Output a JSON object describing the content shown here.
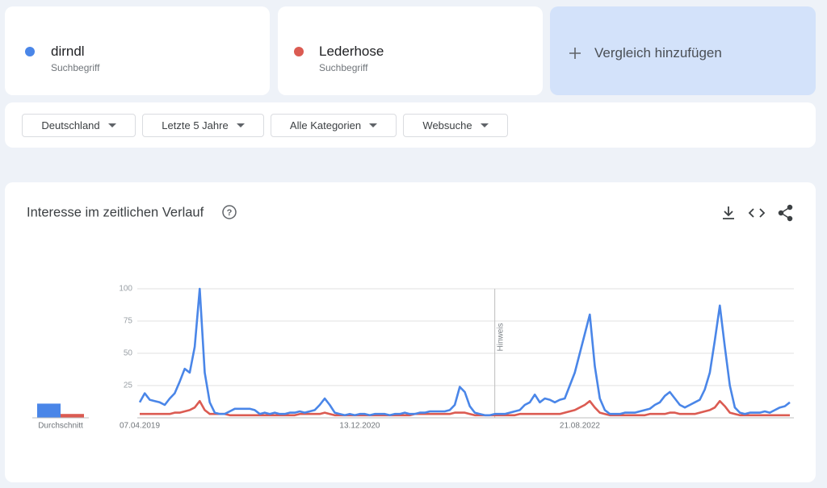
{
  "terms": [
    {
      "subtitle": "Suchbegriff"
    },
    {
      "subtitle": "Suchbegriff"
    }
  ],
  "add_compare": "Vergleich hinzufügen",
  "filters": [
    "Deutschland",
    "Letzte 5 Jahre",
    "Alle Kategorien",
    "Websuche"
  ],
  "chart_data": {
    "type": "line",
    "title": "Interesse im zeitlichen Verlauf",
    "categories": [
      "07.04.2019",
      null,
      null,
      null,
      null,
      null,
      null,
      null,
      null,
      null,
      null,
      null,
      null,
      null,
      null,
      null,
      null,
      null,
      null,
      null,
      null,
      null,
      null,
      null,
      null,
      null,
      null,
      null,
      null,
      null,
      null,
      null,
      null,
      null,
      null,
      null,
      null,
      null,
      null,
      null,
      null,
      null,
      null,
      null,
      "13.12.2020",
      null,
      null,
      null,
      null,
      null,
      null,
      null,
      null,
      null,
      null,
      null,
      null,
      null,
      null,
      null,
      null,
      null,
      null,
      null,
      null,
      null,
      null,
      null,
      null,
      null,
      null,
      null,
      null,
      null,
      null,
      null,
      null,
      null,
      null,
      null,
      null,
      null,
      null,
      null,
      null,
      null,
      null,
      null,
      "21.08.2022",
      null,
      null,
      null,
      null,
      null,
      null,
      null,
      null,
      null,
      null,
      null,
      null,
      null,
      null,
      null,
      null,
      null,
      null,
      null,
      null,
      null,
      null,
      null,
      null,
      null,
      null,
      null,
      null,
      null,
      null,
      null,
      null,
      null,
      null,
      null,
      null,
      null,
      null,
      null,
      null,
      null,
      null
    ],
    "series": [
      {
        "name": "dirndl",
        "color": "#4a86e8",
        "average": 11,
        "values": [
          12,
          19,
          14,
          13,
          12,
          10,
          15,
          19,
          28,
          38,
          35,
          55,
          100,
          35,
          12,
          4,
          3,
          3,
          5,
          7,
          7,
          7,
          7,
          6,
          3,
          4,
          3,
          4,
          3,
          3,
          4,
          4,
          5,
          4,
          5,
          6,
          10,
          15,
          10,
          4,
          3,
          2,
          3,
          2,
          3,
          3,
          2,
          3,
          3,
          3,
          2,
          3,
          3,
          4,
          3,
          3,
          4,
          4,
          5,
          5,
          5,
          5,
          6,
          10,
          24,
          20,
          9,
          4,
          3,
          2,
          2,
          3,
          3,
          3,
          4,
          5,
          6,
          10,
          12,
          18,
          12,
          15,
          14,
          12,
          14,
          15,
          25,
          35,
          50,
          65,
          80,
          40,
          15,
          6,
          3,
          3,
          3,
          4,
          4,
          4,
          5,
          6,
          7,
          10,
          12,
          17,
          20,
          15,
          10,
          8,
          10,
          12,
          14,
          22,
          35,
          60,
          87,
          55,
          25,
          8,
          4,
          3,
          4,
          4,
          4,
          5,
          4,
          6,
          8,
          9,
          12
        ]
      },
      {
        "name": "Lederhose",
        "color": "#db5b52",
        "average": 3,
        "values": [
          3,
          3,
          3,
          3,
          3,
          3,
          3,
          4,
          4,
          5,
          6,
          8,
          13,
          6,
          3,
          3,
          3,
          3,
          2,
          2,
          2,
          2,
          2,
          2,
          2,
          2,
          2,
          2,
          2,
          2,
          2,
          2,
          3,
          3,
          3,
          3,
          3,
          4,
          3,
          2,
          2,
          2,
          2,
          2,
          2,
          2,
          2,
          2,
          2,
          2,
          2,
          2,
          2,
          2,
          2,
          3,
          3,
          3,
          3,
          3,
          3,
          3,
          3,
          4,
          4,
          4,
          3,
          2,
          2,
          2,
          2,
          2,
          2,
          2,
          2,
          2,
          3,
          3,
          3,
          3,
          3,
          3,
          3,
          3,
          3,
          4,
          5,
          6,
          8,
          10,
          13,
          8,
          4,
          3,
          2,
          2,
          2,
          2,
          2,
          2,
          2,
          2,
          3,
          3,
          3,
          3,
          4,
          4,
          3,
          3,
          3,
          3,
          4,
          5,
          6,
          8,
          13,
          9,
          4,
          3,
          2,
          2,
          2,
          2,
          2,
          2,
          2,
          2,
          2,
          2,
          2
        ]
      }
    ],
    "average_label": "Durchschnitt",
    "annotation": {
      "text": "Hinweis",
      "category_index": 71
    },
    "ylim": [
      0,
      100
    ],
    "yticks": [
      25,
      50,
      75,
      100
    ],
    "grid": true
  }
}
